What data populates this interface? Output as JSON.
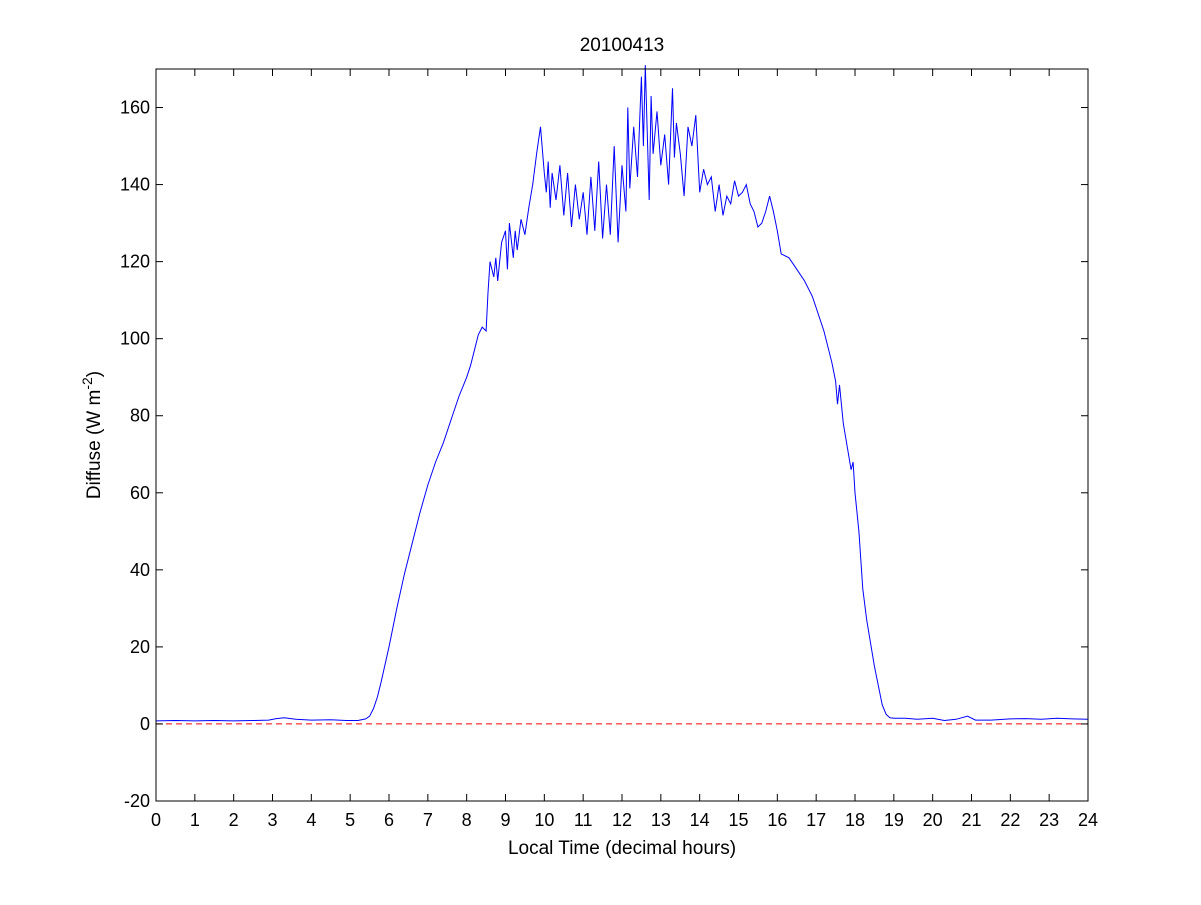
{
  "figure": {
    "background": "#ffffff"
  },
  "chart_data": {
    "type": "line",
    "title": "20100413",
    "xlabel": "Local Time (decimal hours)",
    "ylabel": "Diffuse (W m",
    "ylabel_superscript": "-2",
    "ylabel_close": ")",
    "xlim": [
      0,
      24
    ],
    "ylim": [
      -20,
      170
    ],
    "xticks": [
      0,
      1,
      2,
      3,
      4,
      5,
      6,
      7,
      8,
      9,
      10,
      11,
      12,
      13,
      14,
      15,
      16,
      17,
      18,
      19,
      20,
      21,
      22,
      23,
      24
    ],
    "yticks": [
      -20,
      0,
      20,
      40,
      60,
      80,
      100,
      120,
      140,
      160
    ],
    "grid": false,
    "series": [
      {
        "color": "#0000ff",
        "style": "solid",
        "x": [
          0,
          0.5,
          1,
          1.5,
          2,
          2.5,
          2.9,
          3.1,
          3.3,
          3.6,
          4,
          4.5,
          4.9,
          5.2,
          5.4,
          5.5,
          5.6,
          5.7,
          5.8,
          6,
          6.2,
          6.4,
          6.6,
          6.8,
          7,
          7.2,
          7.4,
          7.6,
          7.8,
          8,
          8.1,
          8.2,
          8.3,
          8.4,
          8.5,
          8.55,
          8.6,
          8.7,
          8.75,
          8.8,
          8.9,
          9.0,
          9.05,
          9.1,
          9.2,
          9.25,
          9.3,
          9.4,
          9.5,
          9.6,
          9.7,
          9.8,
          9.9,
          10.0,
          10.05,
          10.1,
          10.15,
          10.2,
          10.3,
          10.4,
          10.5,
          10.6,
          10.7,
          10.8,
          10.9,
          11.0,
          11.1,
          11.2,
          11.3,
          11.4,
          11.5,
          11.6,
          11.7,
          11.8,
          11.9,
          12.0,
          12.1,
          12.15,
          12.2,
          12.3,
          12.4,
          12.5,
          12.55,
          12.6,
          12.7,
          12.75,
          12.8,
          12.9,
          13.0,
          13.1,
          13.2,
          13.3,
          13.35,
          13.4,
          13.5,
          13.6,
          13.7,
          13.8,
          13.9,
          14.0,
          14.1,
          14.2,
          14.3,
          14.4,
          14.5,
          14.6,
          14.7,
          14.8,
          14.9,
          15.0,
          15.1,
          15.2,
          15.3,
          15.4,
          15.5,
          15.6,
          15.7,
          15.8,
          15.9,
          16.0,
          16.1,
          16.3,
          16.5,
          16.7,
          16.9,
          17.0,
          17.2,
          17.4,
          17.5,
          17.55,
          17.6,
          17.7,
          17.8,
          17.9,
          17.95,
          18.0,
          18.1,
          18.2,
          18.3,
          18.5,
          18.7,
          18.8,
          18.9,
          19.0,
          19.3,
          19.6,
          20.0,
          20.3,
          20.6,
          20.9,
          21.1,
          21.5,
          22.0,
          22.4,
          22.8,
          23.2,
          23.6,
          24.0
        ],
        "y": [
          0.8,
          0.9,
          0.8,
          0.9,
          0.8,
          0.9,
          1.0,
          1.4,
          1.6,
          1.2,
          1.0,
          1.1,
          0.9,
          0.9,
          1.3,
          2.0,
          4,
          7,
          11,
          20,
          30,
          39,
          47,
          55,
          62,
          68,
          73,
          79,
          85,
          90,
          93,
          97,
          101,
          103,
          102,
          112,
          120,
          116,
          121,
          115,
          125,
          128,
          118,
          130,
          121,
          128,
          123,
          131,
          127,
          134,
          140,
          148,
          155,
          143,
          138,
          146,
          134,
          143,
          136,
          145,
          132,
          143,
          129,
          140,
          131,
          138,
          127,
          142,
          128,
          146,
          126,
          140,
          127,
          150,
          125,
          145,
          133,
          160,
          139,
          155,
          142,
          168,
          150,
          171,
          136,
          163,
          148,
          159,
          145,
          153,
          140,
          165,
          147,
          156,
          148,
          137,
          155,
          150,
          158,
          138,
          144,
          140,
          142,
          133,
          140,
          132,
          137,
          135,
          141,
          137,
          138,
          140,
          135,
          133,
          129,
          130,
          133,
          137,
          133,
          128,
          122,
          121,
          118,
          115,
          111,
          108,
          102,
          94,
          89,
          83,
          88,
          78,
          72,
          66,
          68,
          60,
          50,
          35,
          27,
          15,
          5,
          2.5,
          1.6,
          1.5,
          1.5,
          1.2,
          1.5,
          0.9,
          1.2,
          2.0,
          1.0,
          1.0,
          1.3,
          1.4,
          1.2,
          1.5,
          1.3,
          1.2
        ]
      },
      {
        "color": "#ff0000",
        "style": "dashed",
        "x": [
          0,
          24
        ],
        "y": [
          0,
          0
        ]
      }
    ]
  }
}
